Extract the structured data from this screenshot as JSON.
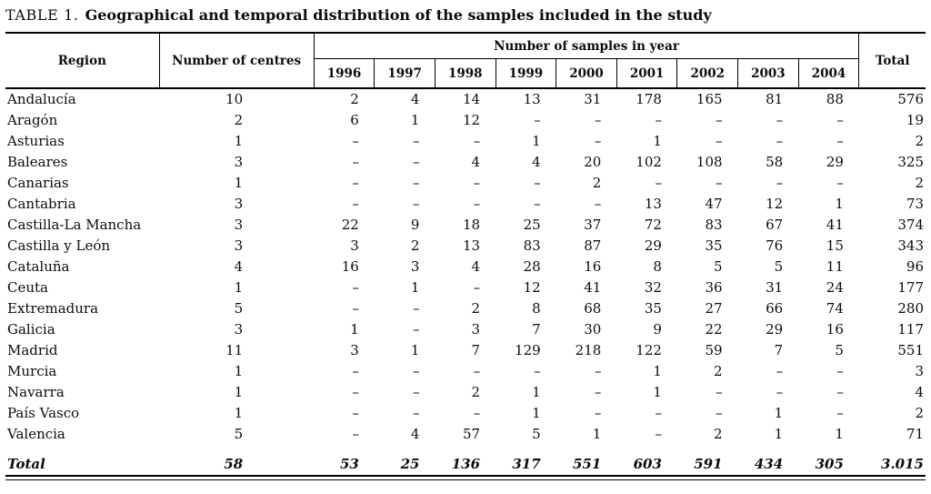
{
  "page": {
    "background": "#ffffff",
    "text_color": "#0c0c0c",
    "rule_color": "#000000"
  },
  "title": {
    "label": "TABLE 1.",
    "text": "Geographical and temporal distribution of the samples included in the study"
  },
  "table": {
    "header": {
      "region": "Region",
      "centres": "Number of centres",
      "samples_group": "Number of samples in year",
      "total": "Total",
      "years": [
        "1996",
        "1997",
        "1998",
        "1999",
        "2000",
        "2001",
        "2002",
        "2003",
        "2004"
      ]
    },
    "rows": [
      {
        "region": "Andalucía",
        "centres": "10",
        "samples": [
          "2",
          "4",
          "14",
          "13",
          "31",
          "178",
          "165",
          "81",
          "88"
        ],
        "total": "576"
      },
      {
        "region": "Aragón",
        "centres": "2",
        "samples": [
          "6",
          "1",
          "12",
          "–",
          "–",
          "–",
          "–",
          "–",
          "–"
        ],
        "total": "19"
      },
      {
        "region": "Asturias",
        "centres": "1",
        "samples": [
          "–",
          "–",
          "–",
          "1",
          "–",
          "1",
          "–",
          "–",
          "–"
        ],
        "total": "2"
      },
      {
        "region": "Baleares",
        "centres": "3",
        "samples": [
          "–",
          "–",
          "4",
          "4",
          "20",
          "102",
          "108",
          "58",
          "29"
        ],
        "total": "325"
      },
      {
        "region": "Canarias",
        "centres": "1",
        "samples": [
          "–",
          "–",
          "–",
          "–",
          "2",
          "–",
          "–",
          "–",
          "–"
        ],
        "total": "2"
      },
      {
        "region": "Cantabria",
        "centres": "3",
        "samples": [
          "–",
          "–",
          "–",
          "–",
          "–",
          "13",
          "47",
          "12",
          "1"
        ],
        "total": "73"
      },
      {
        "region": "Castilla-La Mancha",
        "centres": "3",
        "samples": [
          "22",
          "9",
          "18",
          "25",
          "37",
          "72",
          "83",
          "67",
          "41"
        ],
        "total": "374"
      },
      {
        "region": "Castilla y León",
        "centres": "3",
        "samples": [
          "3",
          "2",
          "13",
          "83",
          "87",
          "29",
          "35",
          "76",
          "15"
        ],
        "total": "343"
      },
      {
        "region": "Cataluña",
        "centres": "4",
        "samples": [
          "16",
          "3",
          "4",
          "28",
          "16",
          "8",
          "5",
          "5",
          "11"
        ],
        "total": "96"
      },
      {
        "region": "Ceuta",
        "centres": "1",
        "samples": [
          "–",
          "1",
          "–",
          "12",
          "41",
          "32",
          "36",
          "31",
          "24"
        ],
        "total": "177"
      },
      {
        "region": "Extremadura",
        "centres": "5",
        "samples": [
          "–",
          "–",
          "2",
          "8",
          "68",
          "35",
          "27",
          "66",
          "74"
        ],
        "total": "280"
      },
      {
        "region": "Galicia",
        "centres": "3",
        "samples": [
          "1",
          "–",
          "3",
          "7",
          "30",
          "9",
          "22",
          "29",
          "16"
        ],
        "total": "117"
      },
      {
        "region": "Madrid",
        "centres": "11",
        "samples": [
          "3",
          "1",
          "7",
          "129",
          "218",
          "122",
          "59",
          "7",
          "5"
        ],
        "total": "551"
      },
      {
        "region": "Murcia",
        "centres": "1",
        "samples": [
          "–",
          "–",
          "–",
          "–",
          "–",
          "1",
          "2",
          "–",
          "–"
        ],
        "total": "3"
      },
      {
        "region": "Navarra",
        "centres": "1",
        "samples": [
          "–",
          "–",
          "2",
          "1",
          "–",
          "1",
          "–",
          "–",
          "–"
        ],
        "total": "4"
      },
      {
        "region": "País Vasco",
        "centres": "1",
        "samples": [
          "–",
          "–",
          "–",
          "1",
          "–",
          "–",
          "–",
          "1",
          "–"
        ],
        "total": "2"
      },
      {
        "region": "Valencia",
        "centres": "5",
        "samples": [
          "–",
          "4",
          "57",
          "5",
          "1",
          "–",
          "2",
          "1",
          "1"
        ],
        "total": "71"
      }
    ],
    "total_row": {
      "region": "Total",
      "centres": "58",
      "samples": [
        "53",
        "25",
        "136",
        "317",
        "551",
        "603",
        "591",
        "434",
        "305"
      ],
      "total": "3.015"
    }
  }
}
